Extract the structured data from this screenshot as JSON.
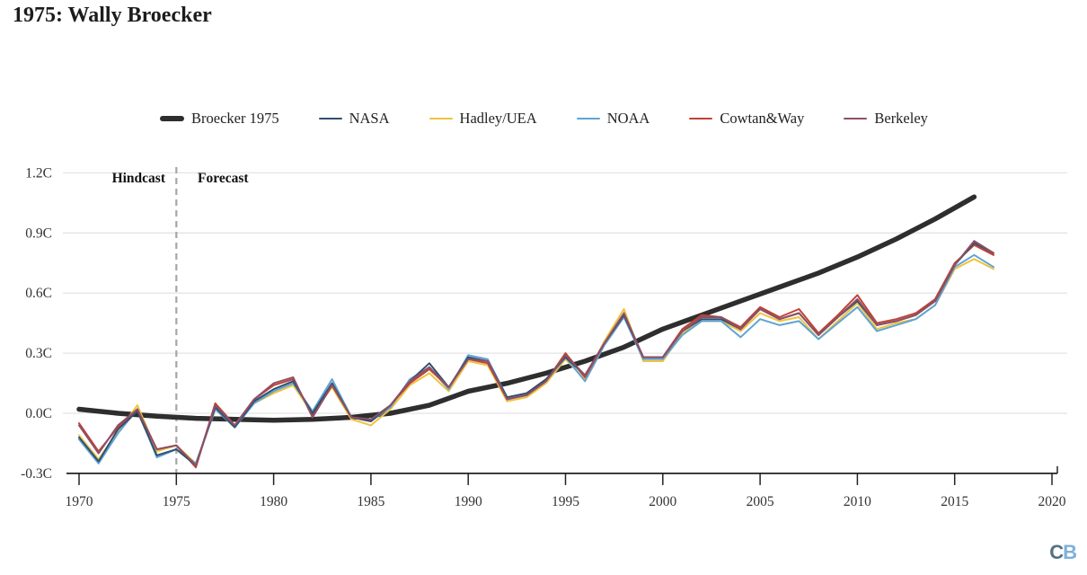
{
  "title": "1975: Wally Broecker",
  "annotations": {
    "hindcast": "Hindcast",
    "forecast": "Forecast"
  },
  "logo": {
    "c": "C",
    "b": "B",
    "c_color": "#54717f",
    "b_color": "#7eb1d8"
  },
  "colors": {
    "broecker": "#2e2e2e",
    "nasa": "#31506e",
    "hadley": "#eec33f",
    "noaa": "#5fa4d4",
    "cowtan": "#c04335",
    "berkeley": "#8f4f66",
    "gridline": "#e4e4e4",
    "axis": "#222222",
    "divider": "#a6a6a6",
    "tick_label": "#333333"
  },
  "chart_data": {
    "type": "line",
    "title": "1975: Wally Broecker",
    "xlabel": "",
    "ylabel": "",
    "xlim": [
      1968.5,
      2020
    ],
    "ylim": [
      -0.3,
      1.2
    ],
    "grid": "horizontal",
    "legend_position": "top",
    "forecast_divider_x": 1975,
    "yticks": [
      {
        "label": "1.2C",
        "value": 1.2
      },
      {
        "label": "0.9C",
        "value": 0.9
      },
      {
        "label": "0.6C",
        "value": 0.6
      },
      {
        "label": "0.3C",
        "value": 0.3
      },
      {
        "label": "0.0C",
        "value": 0.0
      },
      {
        "label": "-0.3C",
        "value": -0.3
      }
    ],
    "xticks": [
      {
        "label": "1970",
        "value": 1970
      },
      {
        "label": "1975",
        "value": 1975
      },
      {
        "label": "1980",
        "value": 1980
      },
      {
        "label": "1985",
        "value": 1985
      },
      {
        "label": "1990",
        "value": 1990
      },
      {
        "label": "1995",
        "value": 1995
      },
      {
        "label": "2000",
        "value": 2000
      },
      {
        "label": "2005",
        "value": 2005
      },
      {
        "label": "2010",
        "value": 2010
      },
      {
        "label": "2015",
        "value": 2015
      },
      {
        "label": "2020",
        "value": 2020
      }
    ],
    "obs_years": [
      1970,
      1971,
      1972,
      1973,
      1974,
      1975,
      1976,
      1977,
      1978,
      1979,
      1980,
      1981,
      1982,
      1983,
      1984,
      1985,
      1986,
      1987,
      1988,
      1989,
      1990,
      1991,
      1992,
      1993,
      1994,
      1995,
      1996,
      1997,
      1998,
      1999,
      2000,
      2001,
      2002,
      2003,
      2004,
      2005,
      2006,
      2007,
      2008,
      2009,
      2010,
      2011,
      2012,
      2013,
      2014,
      2015,
      2016,
      2017
    ],
    "series": [
      {
        "name": "Broecker 1975",
        "color_key": "broecker",
        "line_width": 5.5,
        "x": [
          1970,
          1972,
          1974,
          1976,
          1978,
          1980,
          1982,
          1984,
          1986,
          1988,
          1990,
          1992,
          1994,
          1996,
          1998,
          2000,
          2002,
          2004,
          2006,
          2008,
          2010,
          2012,
          2014,
          2016
        ],
        "values": [
          0.02,
          0.0,
          -0.015,
          -0.025,
          -0.03,
          -0.035,
          -0.03,
          -0.02,
          0.0,
          0.04,
          0.11,
          0.15,
          0.2,
          0.26,
          0.33,
          0.42,
          0.49,
          0.56,
          0.63,
          0.7,
          0.78,
          0.87,
          0.97,
          1.08
        ]
      },
      {
        "name": "NASA",
        "color_key": "nasa",
        "line_width": 2,
        "values": [
          -0.12,
          -0.24,
          -0.08,
          0.01,
          -0.21,
          -0.18,
          -0.26,
          0.03,
          -0.07,
          0.06,
          0.12,
          0.16,
          0.0,
          0.15,
          -0.02,
          -0.04,
          0.04,
          0.16,
          0.25,
          0.13,
          0.28,
          0.26,
          0.08,
          0.1,
          0.17,
          0.28,
          0.19,
          0.35,
          0.49,
          0.28,
          0.28,
          0.41,
          0.47,
          0.47,
          0.42,
          0.52,
          0.47,
          0.5,
          0.39,
          0.48,
          0.56,
          0.44,
          0.46,
          0.49,
          0.56,
          0.74,
          0.85,
          0.8
        ]
      },
      {
        "name": "Hadley/UEA",
        "color_key": "hadley",
        "line_width": 2,
        "values": [
          -0.11,
          -0.23,
          -0.09,
          0.04,
          -0.19,
          -0.16,
          -0.25,
          0.02,
          -0.06,
          0.05,
          0.1,
          0.14,
          0.0,
          0.13,
          -0.03,
          -0.06,
          0.02,
          0.14,
          0.2,
          0.11,
          0.26,
          0.24,
          0.06,
          0.08,
          0.15,
          0.27,
          0.17,
          0.36,
          0.52,
          0.26,
          0.26,
          0.4,
          0.46,
          0.46,
          0.41,
          0.5,
          0.46,
          0.48,
          0.37,
          0.46,
          0.55,
          0.42,
          0.45,
          0.47,
          0.54,
          0.72,
          0.77,
          0.72
        ]
      },
      {
        "name": "NOAA",
        "color_key": "noaa",
        "line_width": 2,
        "values": [
          -0.13,
          -0.25,
          -0.1,
          0.02,
          -0.22,
          -0.18,
          -0.25,
          0.02,
          -0.07,
          0.05,
          0.11,
          0.15,
          0.01,
          0.17,
          -0.02,
          -0.04,
          0.03,
          0.17,
          0.23,
          0.12,
          0.29,
          0.27,
          0.08,
          0.1,
          0.16,
          0.28,
          0.16,
          0.34,
          0.48,
          0.27,
          0.27,
          0.39,
          0.46,
          0.46,
          0.38,
          0.47,
          0.44,
          0.46,
          0.37,
          0.45,
          0.53,
          0.41,
          0.44,
          0.47,
          0.54,
          0.73,
          0.79,
          0.73
        ]
      },
      {
        "name": "Cowtan&Way",
        "color_key": "cowtan",
        "line_width": 2,
        "values": [
          -0.05,
          -0.19,
          -0.07,
          0.02,
          -0.18,
          -0.16,
          -0.27,
          0.05,
          -0.06,
          0.07,
          0.14,
          0.17,
          -0.01,
          0.14,
          -0.02,
          -0.04,
          0.04,
          0.15,
          0.22,
          0.13,
          0.27,
          0.25,
          0.07,
          0.09,
          0.16,
          0.3,
          0.18,
          0.35,
          0.49,
          0.28,
          0.28,
          0.42,
          0.49,
          0.48,
          0.43,
          0.53,
          0.48,
          0.52,
          0.4,
          0.49,
          0.59,
          0.45,
          0.47,
          0.5,
          0.57,
          0.75,
          0.84,
          0.79
        ]
      },
      {
        "name": "Berkeley",
        "color_key": "berkeley",
        "line_width": 2,
        "values": [
          -0.06,
          -0.2,
          -0.06,
          0.02,
          -0.18,
          -0.16,
          -0.26,
          0.04,
          -0.06,
          0.07,
          0.15,
          0.18,
          -0.02,
          0.14,
          -0.02,
          -0.03,
          0.04,
          0.16,
          0.23,
          0.13,
          0.27,
          0.26,
          0.07,
          0.09,
          0.16,
          0.29,
          0.19,
          0.35,
          0.5,
          0.28,
          0.28,
          0.41,
          0.48,
          0.48,
          0.42,
          0.52,
          0.47,
          0.5,
          0.39,
          0.48,
          0.57,
          0.44,
          0.46,
          0.49,
          0.56,
          0.74,
          0.86,
          0.8
        ]
      }
    ]
  }
}
